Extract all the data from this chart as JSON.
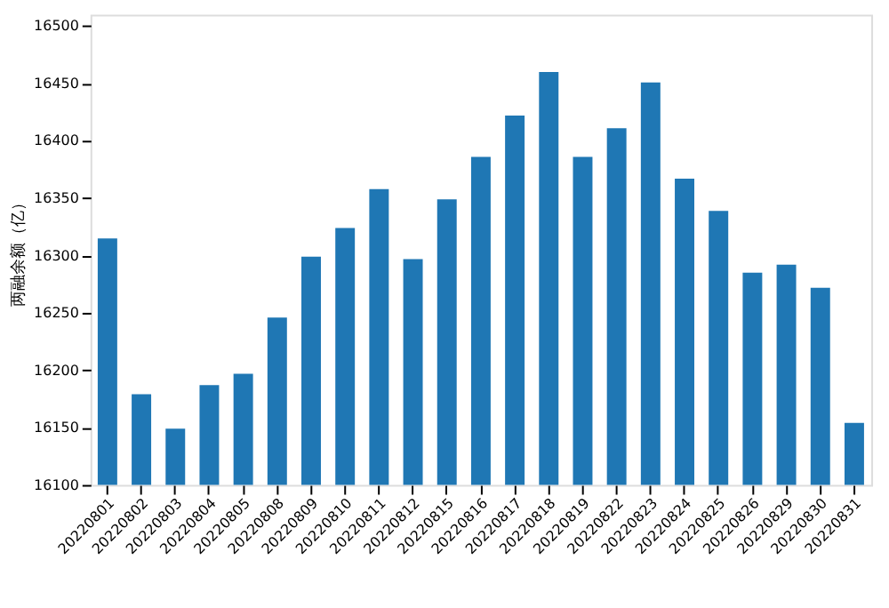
{
  "chart_data": {
    "type": "bar",
    "ylabel": "两融余额（亿）",
    "categories": [
      "20220801",
      "20220802",
      "20220803",
      "20220804",
      "20220805",
      "20220808",
      "20220809",
      "20220810",
      "20220811",
      "20220812",
      "20220815",
      "20220816",
      "20220817",
      "20220818",
      "20220819",
      "20220822",
      "20220823",
      "20220824",
      "20220825",
      "20220826",
      "20220829",
      "20220830",
      "20220831"
    ],
    "values": [
      16315,
      16179,
      16149,
      16187,
      16197,
      16246,
      16299,
      16324,
      16358,
      16297,
      16349,
      16386,
      16422,
      16460,
      16386,
      16411,
      16451,
      16367,
      16339,
      16285,
      16292,
      16272,
      16154
    ],
    "color": "#1f77b4",
    "ylim": [
      16100,
      16510
    ],
    "yticks": [
      16100,
      16150,
      16200,
      16250,
      16300,
      16350,
      16400,
      16450,
      16500
    ],
    "grid": false
  }
}
